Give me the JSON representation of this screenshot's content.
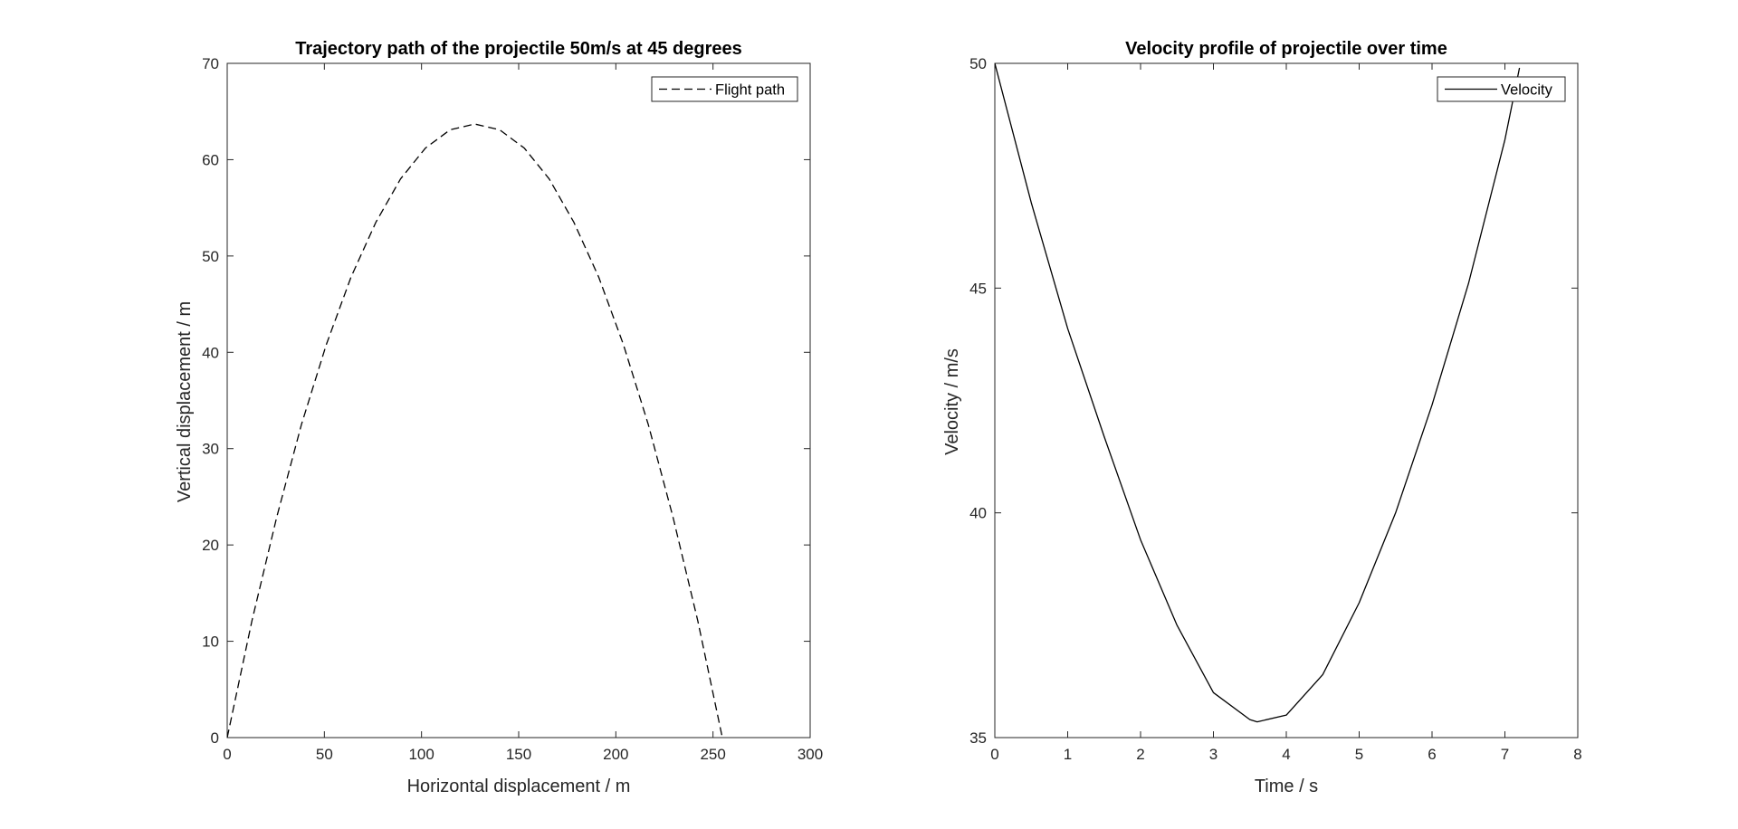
{
  "chart_data": [
    {
      "type": "line",
      "title": "Trajectory path of the projectile 50m/s at 45 degrees",
      "xlabel": "Horizontal displacement / m",
      "ylabel": "Vertical displacement / m",
      "xlim": [
        0,
        300
      ],
      "ylim": [
        0,
        70
      ],
      "xticks": [
        0,
        50,
        100,
        150,
        200,
        250,
        300
      ],
      "yticks": [
        0,
        10,
        20,
        30,
        40,
        50,
        60,
        70
      ],
      "grid": false,
      "legend_position": "top-right",
      "series": [
        {
          "name": "Flight path",
          "line_style": "dashed",
          "color": "#000000",
          "x": [
            0,
            12.7,
            25.5,
            38.2,
            51.0,
            63.7,
            76.5,
            89.2,
            102.0,
            114.7,
            127.4,
            140.2,
            152.9,
            165.7,
            178.4,
            191.2,
            203.9,
            216.7,
            229.4,
            242.2,
            254.8
          ],
          "y": [
            0,
            12.1,
            22.9,
            32.5,
            40.8,
            47.8,
            53.5,
            58.0,
            61.2,
            63.1,
            63.7,
            63.1,
            61.2,
            58.0,
            53.5,
            47.8,
            40.8,
            32.5,
            22.9,
            12.1,
            0
          ]
        }
      ]
    },
    {
      "type": "line",
      "title": "Velocity profile of projectile over time",
      "xlabel": "Time / s",
      "ylabel": "Velocity / m/s",
      "xlim": [
        0,
        8
      ],
      "ylim": [
        35,
        50
      ],
      "xticks": [
        0,
        1,
        2,
        3,
        4,
        5,
        6,
        7,
        8
      ],
      "yticks": [
        35,
        40,
        45,
        50
      ],
      "grid": false,
      "legend_position": "top-right",
      "series": [
        {
          "name": "Velocity",
          "line_style": "solid",
          "color": "#000000",
          "x": [
            0,
            0.5,
            1.0,
            1.5,
            2.0,
            2.5,
            3.0,
            3.5,
            3.6,
            4.0,
            4.5,
            5.0,
            5.5,
            6.0,
            6.5,
            7.0,
            7.2
          ],
          "y": [
            50.0,
            46.9,
            44.1,
            41.7,
            39.4,
            37.5,
            36.0,
            35.4,
            35.35,
            35.5,
            36.4,
            38.0,
            40.0,
            42.4,
            45.1,
            48.3,
            49.9
          ]
        }
      ]
    }
  ]
}
